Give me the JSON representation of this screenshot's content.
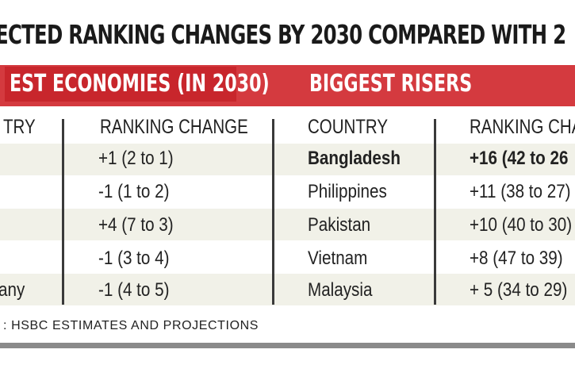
{
  "title": "ECTED RANKING CHANGES BY 2030 COMPARED WITH 2",
  "chart_data": {
    "type": "table",
    "tables": [
      {
        "heading": "EST ECONOMIES (IN 2030)",
        "columns": [
          "TRY",
          "RANKING CHANGE"
        ],
        "rows": [
          {
            "country": "",
            "change": "+1 (2 to 1)",
            "bold": false
          },
          {
            "country": "",
            "change": "-1 (1 to 2)",
            "bold": false
          },
          {
            "country": "",
            "change": "+4 (7 to 3)",
            "bold": false
          },
          {
            "country": "",
            "change": "-1 (3 to 4)",
            "bold": false
          },
          {
            "country": "any",
            "change": "-1 (4 to 5)",
            "bold": false
          }
        ]
      },
      {
        "heading": "BIGGEST RISERS",
        "columns": [
          "COUNTRY",
          "RANKING CHA"
        ],
        "rows": [
          {
            "country": "Bangladesh",
            "change": "+16 (42 to 26",
            "bold": true
          },
          {
            "country": "Philippines",
            "change": "+11 (38 to 27)",
            "bold": false
          },
          {
            "country": "Pakistan",
            "change": "+10 (40 to 30)",
            "bold": false
          },
          {
            "country": "Vietnam",
            "change": "+8 (47 to 39)",
            "bold": false
          },
          {
            "country": "Malaysia",
            "change": "+ 5 (34 to 29)",
            "bold": false
          }
        ]
      }
    ]
  },
  "source": ": HSBC ESTIMATES AND PROJECTIONS",
  "colors": {
    "band": "#d43a3f",
    "band_dark": "#c8262c",
    "row_band": "#f1f1e8",
    "rule": "#8a8a8a"
  }
}
